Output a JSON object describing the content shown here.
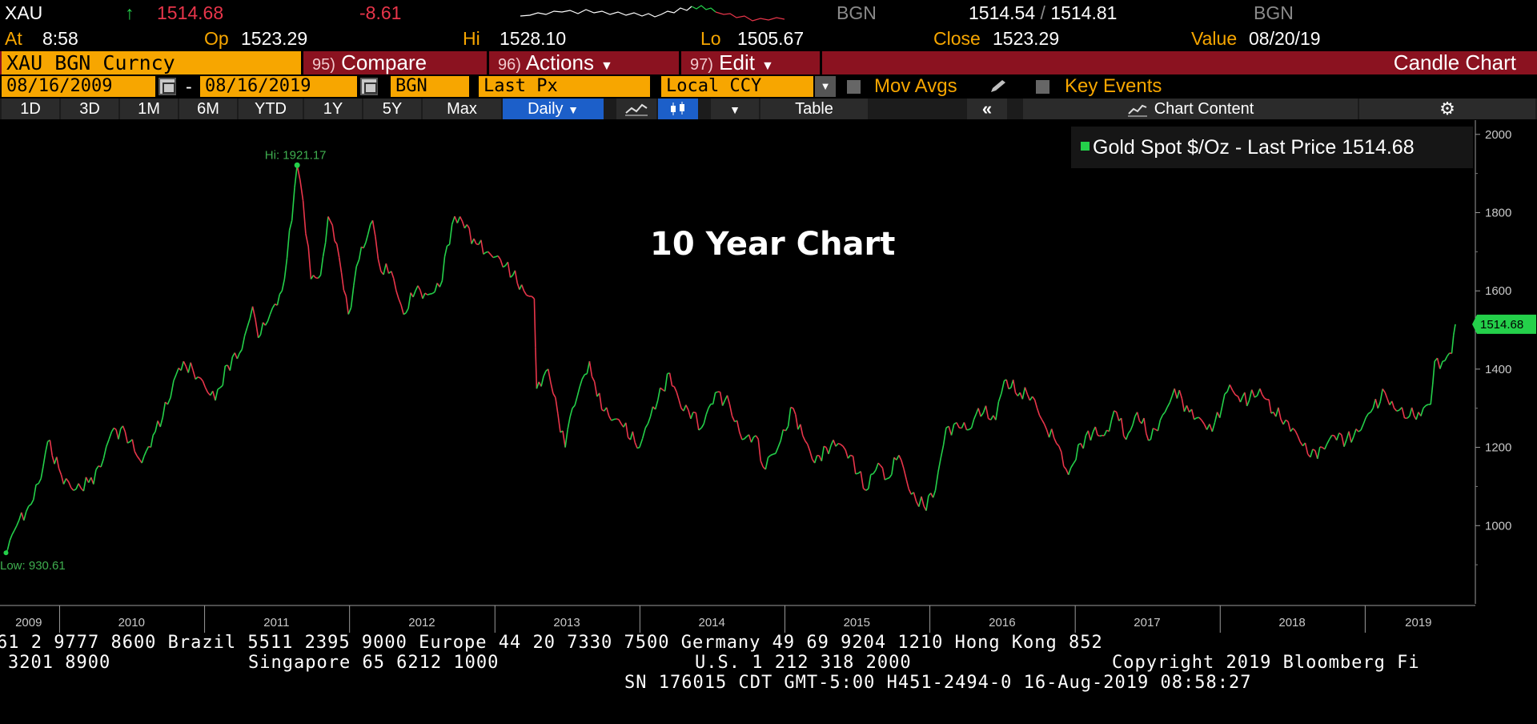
{
  "quote": {
    "ticker": "XAU",
    "arrow": "↑",
    "last": "1514.68",
    "change": "-8.61",
    "source_left": "BGN",
    "bid_ask": "1514.54 / 1514.81",
    "bid": "1514.54",
    "slash": "/",
    "ask": "1514.81",
    "source_right": "BGN",
    "at_label": "At",
    "at_value": "8:58",
    "op_label": "Op",
    "op_value": "1523.29",
    "hi_label": "Hi",
    "hi_value": "1528.10",
    "lo_label": "Lo",
    "lo_value": "1505.67",
    "close_label": "Close",
    "close_value": "1523.29",
    "value_label": "Value",
    "value_value": "08/20/19"
  },
  "command_bar": {
    "security": "XAU BGN Curncy",
    "compare_num": "95)",
    "compare": "Compare",
    "actions_num": "96)",
    "actions": "Actions",
    "edit_num": "97)",
    "edit": "Edit",
    "title": "Candle Chart"
  },
  "settings_bar": {
    "start_date": "08/16/2009",
    "dash": "-",
    "end_date": "08/16/2019",
    "source": "BGN",
    "field": "Last Px",
    "currency": "Local CCY",
    "mov_avgs": "Mov Avgs",
    "key_events": "Key Events"
  },
  "toolbar": {
    "periods": [
      "1D",
      "3D",
      "1M",
      "6M",
      "YTD",
      "1Y",
      "5Y",
      "Max"
    ],
    "frequency": "Daily",
    "table": "Table",
    "chart_content": "Chart Content"
  },
  "legend": {
    "label": "Gold Spot $/Oz - Last Price",
    "value": "1514.68"
  },
  "annotation_title": "10 Year Chart",
  "chart_data": {
    "type": "line",
    "title": "",
    "xlabel": "",
    "ylabel": "",
    "ylim": [
      800,
      2020
    ],
    "y_ticks": [
      1000,
      1200,
      1400,
      1600,
      1800,
      2000
    ],
    "x_tick_labels": [
      "2009",
      "2010",
      "2011",
      "2012",
      "2013",
      "2014",
      "2015",
      "2016",
      "2017",
      "2018",
      "2019"
    ],
    "x_range": [
      "2009-08-16",
      "2019-08-16"
    ],
    "grid": false,
    "legend_position": "top-right",
    "high_label": "Hi: 1921.17",
    "low_label": "Low: 930.61",
    "last_label": "1514.68",
    "series": [
      {
        "name": "Gold Spot $/Oz - Last Price",
        "x": [
          "2009-08-17",
          "2009-09-15",
          "2009-10-15",
          "2009-11-15",
          "2009-12-02",
          "2010-01-05",
          "2010-02-05",
          "2010-03-15",
          "2010-04-15",
          "2010-05-12",
          "2010-06-15",
          "2010-07-27",
          "2010-08-30",
          "2010-09-30",
          "2010-10-15",
          "2010-11-09",
          "2010-12-15",
          "2011-01-28",
          "2011-02-28",
          "2011-04-05",
          "2011-05-02",
          "2011-05-16",
          "2011-06-15",
          "2011-07-15",
          "2011-08-09",
          "2011-08-22",
          "2011-09-06",
          "2011-09-26",
          "2011-10-20",
          "2011-11-08",
          "2011-11-30",
          "2011-12-29",
          "2012-01-25",
          "2012-02-28",
          "2012-03-20",
          "2012-04-15",
          "2012-05-16",
          "2012-06-15",
          "2012-07-15",
          "2012-08-15",
          "2012-09-15",
          "2012-10-05",
          "2012-11-15",
          "2012-12-15",
          "2013-01-15",
          "2013-02-15",
          "2013-03-15",
          "2013-04-10",
          "2013-04-16",
          "2013-05-15",
          "2013-06-27",
          "2013-07-15",
          "2013-08-27",
          "2013-09-15",
          "2013-10-15",
          "2013-11-15",
          "2013-12-31",
          "2014-01-15",
          "2014-02-15",
          "2014-03-17",
          "2014-04-15",
          "2014-05-15",
          "2014-06-05",
          "2014-07-10",
          "2014-08-15",
          "2014-09-15",
          "2014-10-20",
          "2014-11-07",
          "2014-12-15",
          "2015-01-22",
          "2015-02-15",
          "2015-03-17",
          "2015-04-15",
          "2015-05-15",
          "2015-06-15",
          "2015-07-24",
          "2015-08-24",
          "2015-09-15",
          "2015-10-15",
          "2015-11-15",
          "2015-12-17",
          "2016-01-15",
          "2016-02-11",
          "2016-03-15",
          "2016-04-15",
          "2016-05-02",
          "2016-06-15",
          "2016-07-06",
          "2016-08-15",
          "2016-09-15",
          "2016-10-15",
          "2016-11-15",
          "2016-12-15",
          "2017-01-15",
          "2017-02-15",
          "2017-03-15",
          "2017-04-15",
          "2017-05-09",
          "2017-06-06",
          "2017-07-10",
          "2017-08-15",
          "2017-09-08",
          "2017-10-15",
          "2017-11-15",
          "2017-12-12",
          "2018-01-25",
          "2018-02-15",
          "2018-03-15",
          "2018-04-11",
          "2018-05-15",
          "2018-06-15",
          "2018-07-15",
          "2018-08-16",
          "2018-09-15",
          "2018-10-15",
          "2018-11-15",
          "2018-12-15",
          "2019-01-15",
          "2019-02-20",
          "2019-03-15",
          "2019-04-23",
          "2019-05-15",
          "2019-06-15",
          "2019-06-25",
          "2019-07-15",
          "2019-08-07",
          "2019-08-16"
        ],
        "values": [
          930.61,
          1000,
          1050,
          1120,
          1215,
          1130,
          1090,
          1110,
          1150,
          1240,
          1240,
          1160,
          1240,
          1310,
          1370,
          1420,
          1380,
          1320,
          1410,
          1450,
          1560,
          1480,
          1540,
          1600,
          1780,
          1921.17,
          1830,
          1630,
          1640,
          1790,
          1720,
          1540,
          1680,
          1780,
          1650,
          1650,
          1540,
          1600,
          1590,
          1610,
          1770,
          1790,
          1720,
          1700,
          1680,
          1640,
          1600,
          1580,
          1350,
          1400,
          1200,
          1300,
          1420,
          1330,
          1280,
          1260,
          1200,
          1250,
          1320,
          1390,
          1300,
          1290,
          1250,
          1340,
          1310,
          1220,
          1230,
          1150,
          1200,
          1300,
          1230,
          1160,
          1200,
          1210,
          1180,
          1090,
          1160,
          1120,
          1180,
          1080,
          1050,
          1090,
          1250,
          1250,
          1250,
          1300,
          1270,
          1370,
          1340,
          1330,
          1260,
          1210,
          1130,
          1210,
          1240,
          1230,
          1290,
          1220,
          1290,
          1220,
          1290,
          1350,
          1290,
          1270,
          1240,
          1360,
          1330,
          1320,
          1350,
          1290,
          1270,
          1230,
          1175,
          1200,
          1230,
          1220,
          1240,
          1290,
          1340,
          1300,
          1280,
          1290,
          1310,
          1420,
          1420,
          1440,
          1514.68
        ]
      }
    ]
  },
  "footer": {
    "line1": "61 2 9777 8600 Brazil 5511 2395 9000 Europe 44 20 7330 7500 Germany 49 69 9204 1210 Hong Kong 852",
    "line2a": "3201 8900",
    "line2b": "Singapore 65 6212 1000",
    "line2c": "U.S. 1 212 318 2000",
    "line2d": "Copyright 2019 Bloomberg Fi",
    "line3": "SN 176015 CDT  GMT-5:00 H451-2494-0 16-Aug-2019 08:58:27"
  },
  "colors": {
    "up": "#24d04a",
    "down": "#e8354a",
    "amber": "#f7a600",
    "command_bar": "#8b1220",
    "active_button": "#1c5fc9"
  }
}
